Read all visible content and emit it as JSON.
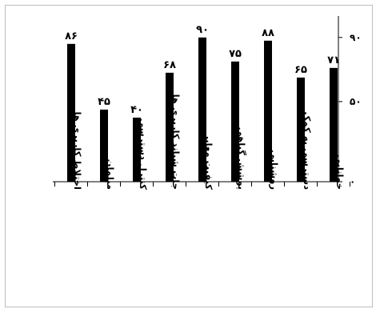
{
  "chart_data": {
    "type": "bar",
    "categories": [
      "اختلاط کاربری ها",
      "مبلمان",
      "کنترل دسترسی",
      "جات شیاند کاربری ها",
      "کیفیت معابر",
      "پوشش گیاهی",
      "روشنایی",
      "دسترسی به کمک",
      "خوانایی"
    ],
    "values": [
      86,
      45,
      40,
      68,
      90,
      75,
      88,
      65,
      71
    ],
    "value_labels": [
      "۸۶",
      "۴۵",
      "۴۰",
      "۶۸",
      "۹۰",
      "۷۵",
      "۸۸",
      "۶۵",
      "۷۱"
    ],
    "y_ticks": [
      {
        "value": 0,
        "label": "۰"
      },
      {
        "value": 50,
        "label": "۵۰"
      },
      {
        "value": 90,
        "label": "۹۰"
      }
    ],
    "ylim": [
      0,
      100
    ],
    "title": "",
    "xlabel": "",
    "ylabel": "",
    "grid": false,
    "bar_color": "#000000",
    "axis_position": "right"
  }
}
